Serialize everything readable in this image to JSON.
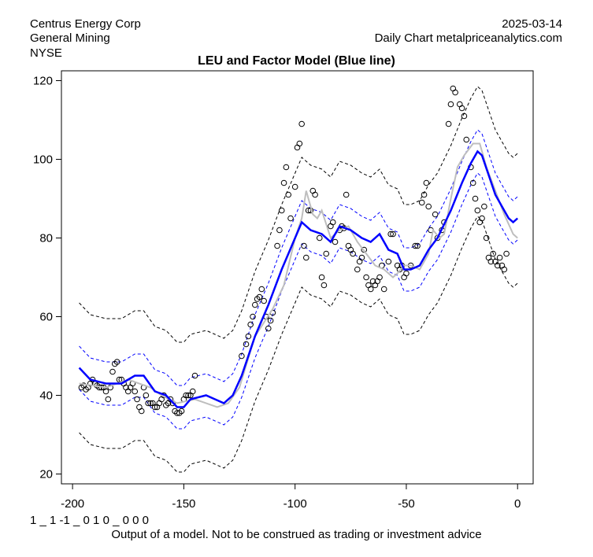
{
  "header": {
    "company": "Centrus Energy Corp",
    "sector": "General Mining",
    "exchange": "NYSE",
    "date": "2025-03-14",
    "source": "Daily Chart metalpriceanalytics.com"
  },
  "footer": {
    "code": "1 _ 1 -1 _ 0 1 0 _ 0 0 0",
    "disclaimer": "Output of a model. Not to be construed as trading or investment advice"
  },
  "chart_data": {
    "type": "line",
    "title": "LEU and Factor Model (Blue line)",
    "xlabel": "",
    "ylabel": "",
    "xlim": [
      -205,
      7
    ],
    "ylim": [
      17.5,
      122.5
    ],
    "xticks": [
      -200,
      -150,
      -100,
      -50,
      0
    ],
    "yticks": [
      20,
      40,
      60,
      80,
      100,
      120
    ],
    "colors": {
      "model": "#0000ff",
      "price_smooth": "#bebebe",
      "inner_band": "#0000ff",
      "outer_band": "#000000",
      "points": "#000000"
    },
    "inner_band_halfwidth": 5.5,
    "outer_band_halfwidth": 16.5,
    "model": [
      [
        -197,
        47
      ],
      [
        -192,
        44
      ],
      [
        -185,
        43
      ],
      [
        -178,
        43
      ],
      [
        -172,
        45
      ],
      [
        -168,
        45
      ],
      [
        -163,
        41
      ],
      [
        -158,
        40
      ],
      [
        -153,
        37
      ],
      [
        -150,
        37
      ],
      [
        -147,
        39
      ],
      [
        -140,
        40
      ],
      [
        -136,
        39
      ],
      [
        -132,
        38
      ],
      [
        -128,
        40
      ],
      [
        -124,
        45
      ],
      [
        -118,
        55
      ],
      [
        -112,
        63
      ],
      [
        -106,
        72
      ],
      [
        -100,
        80
      ],
      [
        -97,
        84
      ],
      [
        -93,
        82
      ],
      [
        -88,
        81
      ],
      [
        -84,
        79
      ],
      [
        -80,
        83
      ],
      [
        -75,
        82
      ],
      [
        -70,
        80
      ],
      [
        -66,
        79
      ],
      [
        -62,
        81
      ],
      [
        -58,
        77
      ],
      [
        -54,
        76
      ],
      [
        -51,
        72
      ],
      [
        -48,
        72
      ],
      [
        -44,
        73
      ],
      [
        -40,
        77
      ],
      [
        -36,
        80
      ],
      [
        -30,
        87
      ],
      [
        -25,
        94
      ],
      [
        -21,
        99
      ],
      [
        -18,
        102
      ],
      [
        -16,
        101
      ],
      [
        -13,
        96
      ],
      [
        -10,
        91
      ],
      [
        -7,
        88
      ],
      [
        -4,
        85
      ],
      [
        -2,
        84
      ],
      [
        0,
        85
      ]
    ],
    "price_smooth": [
      [
        -197,
        43
      ],
      [
        -185,
        42
      ],
      [
        -175,
        44
      ],
      [
        -165,
        42
      ],
      [
        -160,
        40
      ],
      [
        -153,
        38
      ],
      [
        -145,
        39
      ],
      [
        -135,
        37
      ],
      [
        -130,
        38
      ],
      [
        -125,
        42
      ],
      [
        -118,
        55
      ],
      [
        -110,
        62
      ],
      [
        -105,
        68
      ],
      [
        -100,
        80
      ],
      [
        -97,
        85
      ],
      [
        -95,
        92
      ],
      [
        -92,
        86
      ],
      [
        -90,
        85
      ],
      [
        -88,
        87
      ],
      [
        -84,
        80
      ],
      [
        -80,
        82
      ],
      [
        -76,
        83
      ],
      [
        -72,
        79
      ],
      [
        -68,
        76
      ],
      [
        -64,
        73
      ],
      [
        -60,
        72
      ],
      [
        -56,
        70
      ],
      [
        -54,
        71
      ],
      [
        -51,
        73
      ],
      [
        -48,
        73
      ],
      [
        -44,
        72
      ],
      [
        -40,
        76
      ],
      [
        -38,
        82
      ],
      [
        -35,
        80
      ],
      [
        -33,
        81
      ],
      [
        -30,
        90
      ],
      [
        -27,
        98
      ],
      [
        -24,
        101
      ],
      [
        -20,
        104
      ],
      [
        -17,
        104
      ],
      [
        -14,
        98
      ],
      [
        -10,
        92
      ],
      [
        -6,
        86
      ],
      [
        -2,
        81
      ],
      [
        0,
        80
      ]
    ],
    "points": [
      [
        -196,
        42
      ],
      [
        -195,
        42.5
      ],
      [
        -194,
        41.5
      ],
      [
        -193,
        42
      ],
      [
        -192,
        43
      ],
      [
        -191,
        44
      ],
      [
        -190,
        43
      ],
      [
        -189,
        42.5
      ],
      [
        -188,
        42
      ],
      [
        -187,
        42
      ],
      [
        -186,
        42
      ],
      [
        -185,
        41
      ],
      [
        -184,
        39
      ],
      [
        -183,
        42
      ],
      [
        -182,
        46
      ],
      [
        -181,
        48
      ],
      [
        -180,
        48.5
      ],
      [
        -179,
        44
      ],
      [
        -178,
        44
      ],
      [
        -177,
        43
      ],
      [
        -176,
        42
      ],
      [
        -175,
        41
      ],
      [
        -174,
        42
      ],
      [
        -173,
        43
      ],
      [
        -172,
        41
      ],
      [
        -171,
        39
      ],
      [
        -170,
        37
      ],
      [
        -169,
        36
      ],
      [
        -168,
        42
      ],
      [
        -167,
        40
      ],
      [
        -166,
        38
      ],
      [
        -165,
        38
      ],
      [
        -164,
        38
      ],
      [
        -163,
        37
      ],
      [
        -162,
        37
      ],
      [
        -161,
        38
      ],
      [
        -160,
        39
      ],
      [
        -159,
        40
      ],
      [
        -158,
        37.5
      ],
      [
        -157,
        38
      ],
      [
        -156,
        39
      ],
      [
        -155,
        38
      ],
      [
        -154,
        36
      ],
      [
        -153,
        35.5
      ],
      [
        -152,
        35.5
      ],
      [
        -151,
        36
      ],
      [
        -150,
        39
      ],
      [
        -149,
        40
      ],
      [
        -148,
        40
      ],
      [
        -147,
        40
      ],
      [
        -146,
        41
      ],
      [
        -145,
        45
      ],
      [
        -124,
        50
      ],
      [
        -122,
        53
      ],
      [
        -121,
        55
      ],
      [
        -120,
        58
      ],
      [
        -119,
        60
      ],
      [
        -118,
        63
      ],
      [
        -117,
        64.5
      ],
      [
        -116,
        65
      ],
      [
        -115,
        67
      ],
      [
        -114,
        64
      ],
      [
        -113,
        60
      ],
      [
        -112,
        57
      ],
      [
        -111,
        59
      ],
      [
        -110,
        61
      ],
      [
        -108,
        78
      ],
      [
        -107,
        82
      ],
      [
        -106,
        87
      ],
      [
        -105,
        94
      ],
      [
        -104,
        98
      ],
      [
        -103,
        91
      ],
      [
        -102,
        85
      ],
      [
        -100,
        93
      ],
      [
        -99,
        103
      ],
      [
        -98,
        104
      ],
      [
        -97,
        109
      ],
      [
        -96,
        78
      ],
      [
        -95,
        75
      ],
      [
        -94,
        87
      ],
      [
        -93,
        87
      ],
      [
        -92,
        92
      ],
      [
        -91,
        91
      ],
      [
        -89,
        80
      ],
      [
        -88,
        70
      ],
      [
        -87,
        68
      ],
      [
        -86,
        76
      ],
      [
        -84,
        83
      ],
      [
        -83,
        84
      ],
      [
        -82,
        79
      ],
      [
        -80,
        82
      ],
      [
        -79,
        83
      ],
      [
        -78,
        82.5
      ],
      [
        -77,
        91
      ],
      [
        -76,
        78
      ],
      [
        -75,
        77
      ],
      [
        -74,
        76
      ],
      [
        -72,
        72
      ],
      [
        -71,
        74
      ],
      [
        -70,
        75
      ],
      [
        -69,
        77
      ],
      [
        -68,
        70
      ],
      [
        -67,
        68
      ],
      [
        -66,
        67
      ],
      [
        -65,
        69
      ],
      [
        -64,
        68
      ],
      [
        -63,
        69
      ],
      [
        -62,
        70
      ],
      [
        -61,
        73
      ],
      [
        -60,
        67
      ],
      [
        -58,
        74
      ],
      [
        -57,
        81
      ],
      [
        -56,
        81
      ],
      [
        -54,
        73
      ],
      [
        -53,
        72
      ],
      [
        -52,
        73
      ],
      [
        -51,
        70
      ],
      [
        -50,
        71
      ],
      [
        -48,
        73
      ],
      [
        -46,
        78
      ],
      [
        -45,
        78
      ],
      [
        -43,
        89
      ],
      [
        -42,
        91
      ],
      [
        -41,
        94
      ],
      [
        -40,
        88
      ],
      [
        -39,
        82
      ],
      [
        -37,
        86
      ],
      [
        -36,
        80
      ],
      [
        -34,
        82
      ],
      [
        -33,
        84
      ],
      [
        -31,
        109
      ],
      [
        -30,
        114
      ],
      [
        -29,
        118
      ],
      [
        -28,
        117
      ],
      [
        -26,
        114
      ],
      [
        -25,
        113
      ],
      [
        -24,
        111
      ],
      [
        -23,
        105
      ],
      [
        -21,
        98
      ],
      [
        -20,
        94
      ],
      [
        -19,
        90
      ],
      [
        -18,
        87
      ],
      [
        -17,
        84
      ],
      [
        -16,
        85
      ],
      [
        -15,
        88
      ],
      [
        -14,
        80
      ],
      [
        -13,
        75
      ],
      [
        -12,
        74
      ],
      [
        -11,
        76
      ],
      [
        -10,
        74
      ],
      [
        -9,
        73
      ],
      [
        -8,
        75
      ],
      [
        -7,
        73
      ],
      [
        -6,
        72
      ],
      [
        -5,
        76
      ]
    ]
  }
}
